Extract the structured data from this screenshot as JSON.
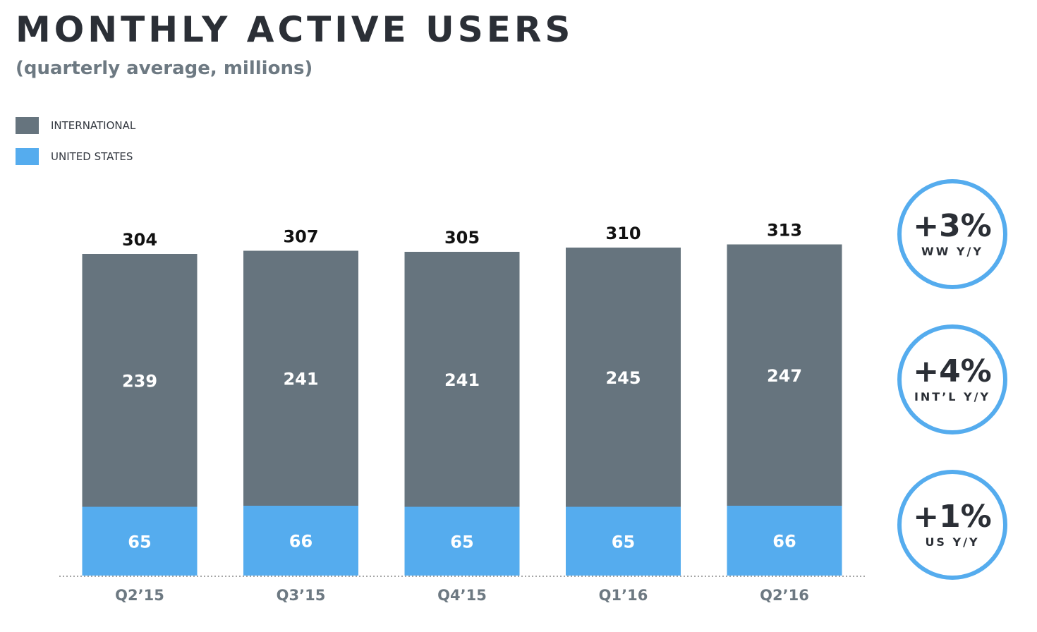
{
  "header": {
    "title": "MONTHLY ACTIVE USERS",
    "subtitle": "(quarterly average, millions)"
  },
  "legend": [
    {
      "label": "INTERNATIONAL",
      "color": "#66747e"
    },
    {
      "label": "UNITED STATES",
      "color": "#55acee"
    }
  ],
  "badges": [
    {
      "value": "+3%",
      "label": "WW Y/Y"
    },
    {
      "value": "+4%",
      "label": "INT’L Y/Y"
    },
    {
      "value": "+1%",
      "label": "US Y/Y"
    }
  ],
  "colors": {
    "international": "#66747e",
    "united_states": "#55acee",
    "badge_ring": "#55acee",
    "text_dark": "#2b2f36",
    "text_muted": "#6d7982",
    "baseline": "#888888"
  },
  "chart_data": {
    "type": "bar",
    "stacked": true,
    "title": "MONTHLY ACTIVE USERS",
    "subtitle": "(quarterly average, millions)",
    "categories": [
      "Q2’15",
      "Q3’15",
      "Q4’15",
      "Q1’16",
      "Q2’16"
    ],
    "series": [
      {
        "name": "UNITED STATES",
        "values": [
          65,
          66,
          65,
          65,
          66
        ]
      },
      {
        "name": "INTERNATIONAL",
        "values": [
          239,
          241,
          241,
          245,
          247
        ]
      }
    ],
    "totals": [
      304,
      307,
      305,
      310,
      313
    ],
    "ylim": [
      0,
      325
    ],
    "grid": false,
    "legend_position": "top-left",
    "baseline_style": "dotted"
  }
}
